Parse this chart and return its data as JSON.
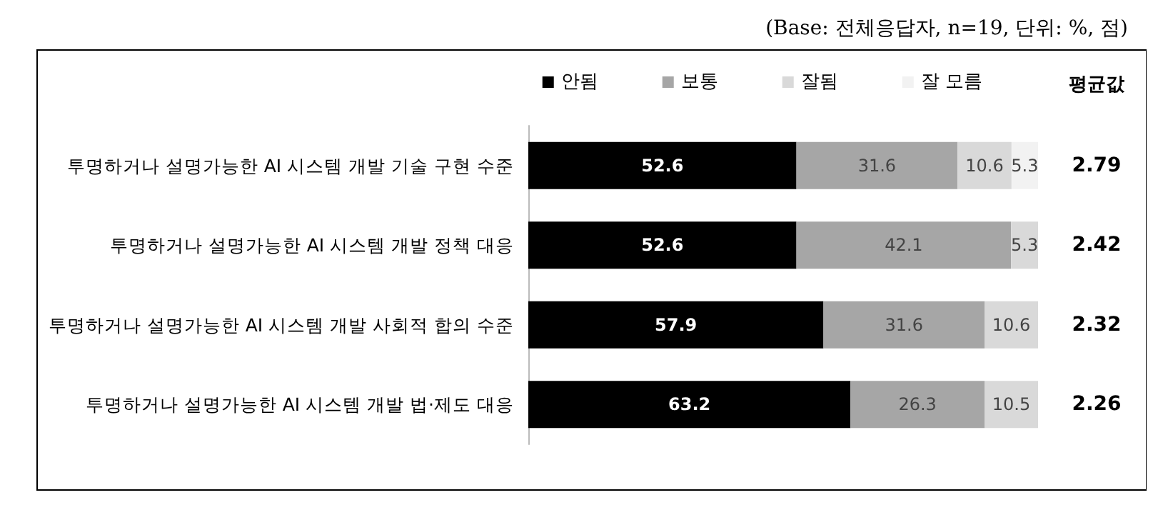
{
  "chart_data": {
    "type": "bar",
    "orientation": "horizontal",
    "stacked": true,
    "subtitle": "(Base: 전체응답자, n=19, 단위: %, 점)",
    "categories": [
      "투명하거나 설명가능한 AI 시스템 개발 기술 구현 수준",
      "투명하거나 설명가능한 AI 시스템 개발 정책 대응",
      "투명하거나 설명가능한 AI 시스템 개발 사회적 합의 수준",
      "투명하거나 설명가능한 AI 시스템 개발 법·제도 대응"
    ],
    "series": [
      {
        "name": "안됨",
        "color": "#000000",
        "values": [
          52.6,
          52.6,
          57.9,
          63.2
        ]
      },
      {
        "name": "보통",
        "color": "#a6a6a6",
        "values": [
          31.6,
          42.1,
          31.6,
          26.3
        ]
      },
      {
        "name": "잘됨",
        "color": "#d9d9d9",
        "values": [
          10.6,
          5.3,
          10.6,
          10.5
        ]
      },
      {
        "name": "잘 모름",
        "color": "#f2f2f2",
        "values": [
          5.3,
          null,
          null,
          null
        ]
      }
    ],
    "xlim": [
      0,
      100
    ],
    "tick_labels": "y",
    "grid": false,
    "legend": "top right",
    "data_labels": true,
    "annotations": [
      "평균값",
      "2.79",
      "2.42",
      "2.32",
      "2.26"
    ]
  }
}
